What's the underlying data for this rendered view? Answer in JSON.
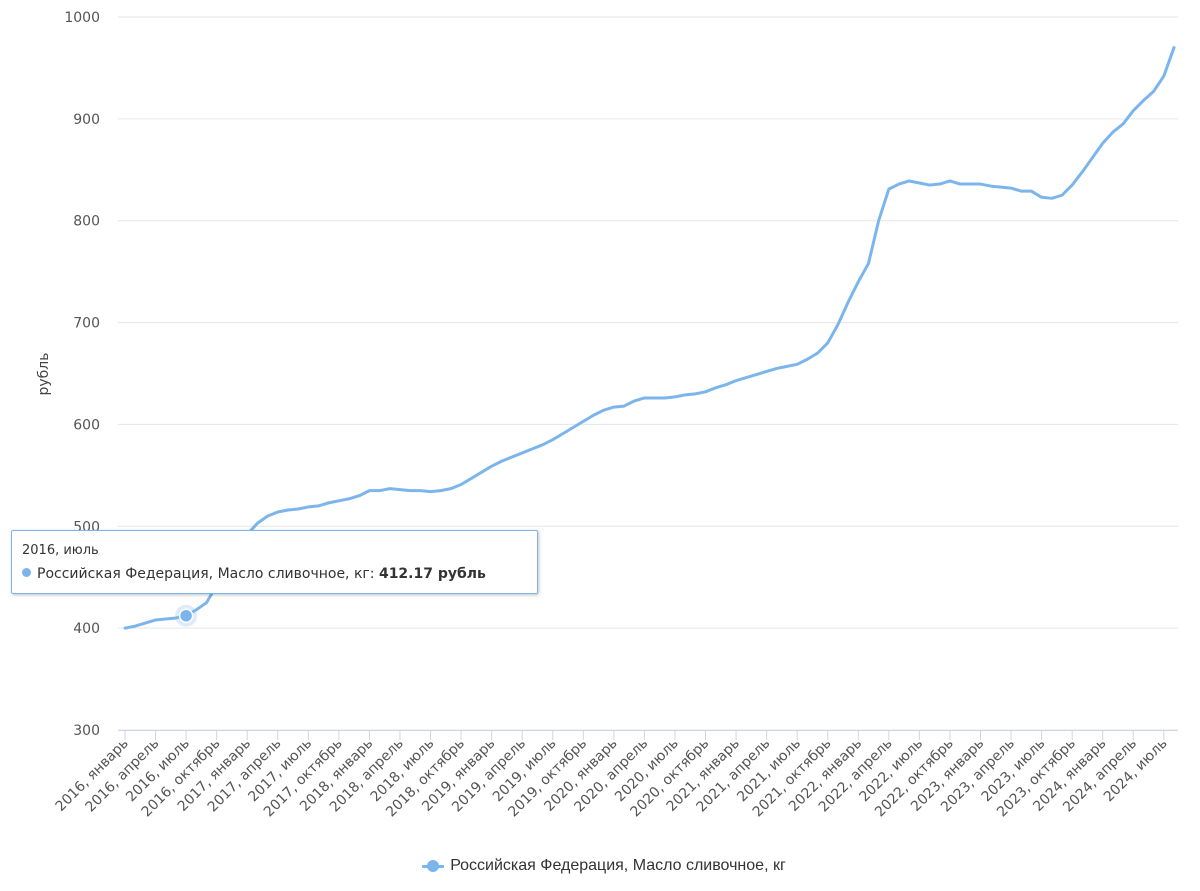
{
  "chart_data": {
    "type": "line",
    "ylabel": "рубль",
    "ylim": [
      300,
      1000
    ],
    "yticks": [
      1000,
      900,
      800,
      700,
      600,
      500,
      400,
      300
    ],
    "grid": true,
    "legend_position": "bottom-center",
    "x_tick_labels": [
      "2016, январь",
      "2016, апрель",
      "2016, июль",
      "2016, октябрь",
      "2017, январь",
      "2017, апрель",
      "2017, июль",
      "2017, октябрь",
      "2018, январь",
      "2018, апрель",
      "2018, июль",
      "2018, октябрь",
      "2019, январь",
      "2019, апрель",
      "2019, июль",
      "2019, октябрь",
      "2020, январь",
      "2020, апрель",
      "2020, июль",
      "2020, октябрь",
      "2021, январь",
      "2021, апрель",
      "2021, июль",
      "2021, октябрь",
      "2022, январь",
      "2022, апрель",
      "2022, июль",
      "2022, октябрь",
      "2023, январь",
      "2023, апрель",
      "2023, июль",
      "2023, октябрь",
      "2024, январь",
      "2024, апрель",
      "2024, июль"
    ],
    "series": [
      {
        "name": "Российская Федерация, Масло сливочное, кг",
        "color": "#7cb5ec",
        "start": "2016, январь",
        "frequency": "monthly",
        "values": [
          400,
          402,
          405,
          408,
          409,
          410,
          412.17,
          418,
          425,
          442,
          460,
          478,
          492,
          503,
          510,
          514,
          516,
          517,
          519,
          520,
          523,
          525,
          527,
          530,
          535,
          535,
          537,
          536,
          535,
          535,
          534,
          535,
          537,
          541,
          547,
          553,
          559,
          564,
          568,
          572,
          576,
          580,
          585,
          591,
          597,
          603,
          609,
          614,
          617,
          618,
          623,
          626,
          626,
          626,
          627,
          629,
          630,
          632,
          636,
          639,
          643,
          646,
          649,
          652,
          655,
          657,
          659,
          664,
          670,
          680,
          698,
          720,
          740,
          758,
          800,
          831,
          836,
          839,
          837,
          835,
          836,
          839,
          836,
          836,
          836,
          834,
          833,
          832,
          829,
          829,
          823,
          822,
          825,
          835,
          848,
          862,
          876,
          887,
          895,
          908,
          918,
          927,
          942,
          970
        ]
      }
    ]
  },
  "tooltip": {
    "header": "2016, июль",
    "series_label": "Российская Федерация, Масло сливочное, кг: ",
    "value": "412.17 рубль",
    "point_index": 6
  },
  "legend": {
    "label": "Российская Федерация, Масло сливочное, кг"
  }
}
